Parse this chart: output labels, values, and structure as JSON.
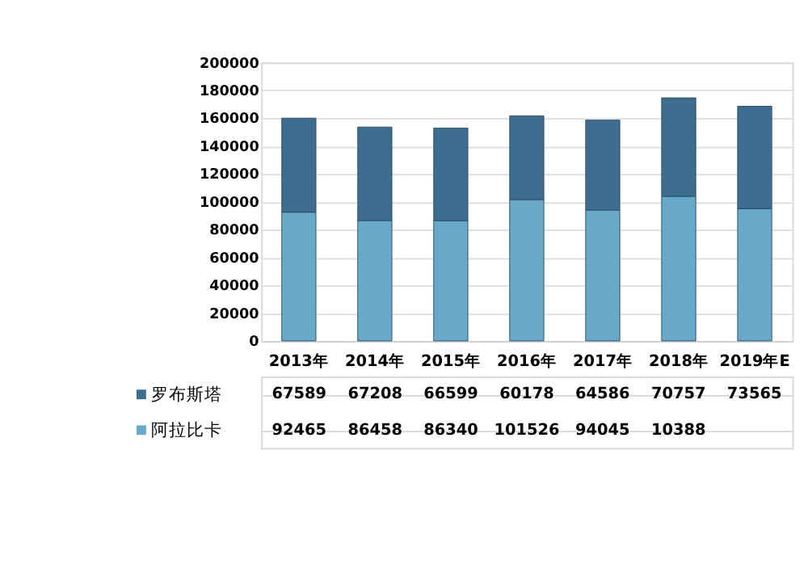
{
  "chart_data": {
    "type": "bar",
    "stacked": true,
    "categories": [
      "2013年",
      "2014年",
      "2015年",
      "2016年",
      "2017年",
      "2018年",
      "2019年E"
    ],
    "series": [
      {
        "name": "阿拉比卡",
        "color": "#68a8c9",
        "values": [
          92465,
          86458,
          86340,
          101526,
          94045,
          103880,
          95000
        ]
      },
      {
        "name": "罗布斯塔",
        "color": "#3d6e8f",
        "values": [
          67589,
          67208,
          66599,
          60178,
          64586,
          70757,
          73565
        ]
      }
    ],
    "value_labels": [
      [
        "92465",
        "86458",
        "86340",
        "101526",
        "94045",
        "10388",
        null
      ],
      [
        "67589",
        "67208",
        "66599",
        "60178",
        "64586",
        "70757",
        "73565"
      ]
    ],
    "ylim": [
      0,
      200000
    ],
    "yticks": [
      0,
      20000,
      40000,
      60000,
      80000,
      100000,
      120000,
      140000,
      160000,
      180000,
      200000
    ],
    "grid": "y",
    "legend": "bottom"
  }
}
